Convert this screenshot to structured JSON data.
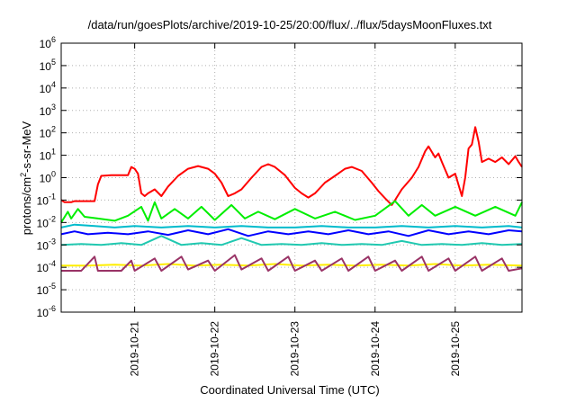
{
  "chart_data": {
    "type": "line",
    "title": "/data/run/goesPlots/archive/2019-10-25/20:00/flux/../flux/5daysMoonFluxes.txt",
    "xlabel": "Coordinated Universal Time (UTC)",
    "ylabel": {
      "base": "protons/cm",
      "sup": "2",
      "rest": "-s-sr-MeV"
    },
    "y_scale": "log",
    "ylim": [
      1e-06,
      1000000.0
    ],
    "xlim": [
      "2019-10-20 02:00",
      "2019-10-25 20:00"
    ],
    "grid": "dotted",
    "y_ticks": [
      {
        "base": "10",
        "exp": "-6"
      },
      {
        "base": "10",
        "exp": "-5"
      },
      {
        "base": "10",
        "exp": "-4"
      },
      {
        "base": "10",
        "exp": "-3"
      },
      {
        "base": "10",
        "exp": "-2"
      },
      {
        "base": "10",
        "exp": "-1"
      },
      {
        "base": "10",
        "exp": "0"
      },
      {
        "base": "10",
        "exp": "1"
      },
      {
        "base": "10",
        "exp": "2"
      },
      {
        "base": "10",
        "exp": "3"
      },
      {
        "base": "10",
        "exp": "4"
      },
      {
        "base": "10",
        "exp": "5"
      },
      {
        "base": "10",
        "exp": "6"
      }
    ],
    "x_ticks": [
      "2019-10-21",
      "2019-10-22",
      "2019-10-23",
      "2019-10-24",
      "2019-10-25"
    ],
    "series": [
      {
        "color": "#ff0000",
        "points": [
          [
            "2019-10-20 02:00",
            0.1
          ],
          [
            "2019-10-20 03:00",
            0.08
          ],
          [
            "2019-10-20 05:00",
            0.08
          ],
          [
            "2019-10-20 06:00",
            0.09
          ],
          [
            "2019-10-20 12:00",
            0.09
          ],
          [
            "2019-10-20 13:00",
            0.5
          ],
          [
            "2019-10-20 14:00",
            1.2
          ],
          [
            "2019-10-20 17:00",
            1.3
          ],
          [
            "2019-10-20 22:00",
            1.3
          ],
          [
            "2019-10-20 23:00",
            3
          ],
          [
            "2019-10-21 00:00",
            2.5
          ],
          [
            "2019-10-21 01:00",
            1.5
          ],
          [
            "2019-10-21 02:00",
            0.2
          ],
          [
            "2019-10-21 03:00",
            0.15
          ],
          [
            "2019-10-21 04:00",
            0.2
          ],
          [
            "2019-10-21 06:00",
            0.3
          ],
          [
            "2019-10-21 08:00",
            0.15
          ],
          [
            "2019-10-21 10:00",
            0.4
          ],
          [
            "2019-10-21 13:00",
            1.2
          ],
          [
            "2019-10-21 16:00",
            2.5
          ],
          [
            "2019-10-21 19:00",
            3.3
          ],
          [
            "2019-10-21 22:00",
            2.5
          ],
          [
            "2019-10-22 00:00",
            1.5
          ],
          [
            "2019-10-22 02:00",
            0.6
          ],
          [
            "2019-10-22 04:00",
            0.15
          ],
          [
            "2019-10-22 06:00",
            0.2
          ],
          [
            "2019-10-22 08:00",
            0.3
          ],
          [
            "2019-10-22 11:00",
            1
          ],
          [
            "2019-10-22 14:00",
            3
          ],
          [
            "2019-10-22 16:00",
            4
          ],
          [
            "2019-10-22 18:00",
            3
          ],
          [
            "2019-10-22 21:00",
            1.3
          ],
          [
            "2019-10-23 00:00",
            0.35
          ],
          [
            "2019-10-23 02:00",
            0.2
          ],
          [
            "2019-10-23 04:00",
            0.13
          ],
          [
            "2019-10-23 06:00",
            0.2
          ],
          [
            "2019-10-23 09:00",
            0.6
          ],
          [
            "2019-10-23 12:00",
            1.2
          ],
          [
            "2019-10-23 15:00",
            2.5
          ],
          [
            "2019-10-23 17:00",
            3
          ],
          [
            "2019-10-23 20:00",
            2
          ],
          [
            "2019-10-23 23:00",
            0.6
          ],
          [
            "2019-10-24 01:00",
            0.25
          ],
          [
            "2019-10-24 03:00",
            0.12
          ],
          [
            "2019-10-24 05:00",
            0.06
          ],
          [
            "2019-10-24 06:00",
            0.1
          ],
          [
            "2019-10-24 08:00",
            0.3
          ],
          [
            "2019-10-24 11:00",
            1
          ],
          [
            "2019-10-24 13:00",
            3
          ],
          [
            "2019-10-24 15:00",
            15
          ],
          [
            "2019-10-24 16:00",
            25
          ],
          [
            "2019-10-24 18:00",
            8
          ],
          [
            "2019-10-24 19:00",
            12
          ],
          [
            "2019-10-24 20:00",
            5
          ],
          [
            "2019-10-24 22:00",
            1
          ],
          [
            "2019-10-25 00:00",
            1.5
          ],
          [
            "2019-10-25 02:00",
            0.15
          ],
          [
            "2019-10-25 03:00",
            1
          ],
          [
            "2019-10-25 04:00",
            20
          ],
          [
            "2019-10-25 05:00",
            30
          ],
          [
            "2019-10-25 06:00",
            180
          ],
          [
            "2019-10-25 07:00",
            40
          ],
          [
            "2019-10-25 08:00",
            5
          ],
          [
            "2019-10-25 10:00",
            7
          ],
          [
            "2019-10-25 12:00",
            5
          ],
          [
            "2019-10-25 14:00",
            8
          ],
          [
            "2019-10-25 16:00",
            4
          ],
          [
            "2019-10-25 18:00",
            9
          ],
          [
            "2019-10-25 19:00",
            5
          ],
          [
            "2019-10-25 20:00",
            3
          ]
        ]
      },
      {
        "color": "#00ee00",
        "points": [
          [
            "2019-10-20 02:00",
            0.01
          ],
          [
            "2019-10-20 04:00",
            0.03
          ],
          [
            "2019-10-20 05:00",
            0.015
          ],
          [
            "2019-10-20 07:00",
            0.04
          ],
          [
            "2019-10-20 09:00",
            0.018
          ],
          [
            "2019-10-20 13:00",
            0.015
          ],
          [
            "2019-10-20 18:00",
            0.012
          ],
          [
            "2019-10-20 22:00",
            0.02
          ],
          [
            "2019-10-21 02:00",
            0.05
          ],
          [
            "2019-10-21 04:00",
            0.012
          ],
          [
            "2019-10-21 06:00",
            0.08
          ],
          [
            "2019-10-21 08:00",
            0.015
          ],
          [
            "2019-10-21 12:00",
            0.04
          ],
          [
            "2019-10-21 16:00",
            0.015
          ],
          [
            "2019-10-21 20:00",
            0.05
          ],
          [
            "2019-10-22 00:00",
            0.013
          ],
          [
            "2019-10-22 05:00",
            0.06
          ],
          [
            "2019-10-22 09:00",
            0.015
          ],
          [
            "2019-10-22 13:00",
            0.03
          ],
          [
            "2019-10-22 18:00",
            0.014
          ],
          [
            "2019-10-23 00:00",
            0.04
          ],
          [
            "2019-10-23 06:00",
            0.015
          ],
          [
            "2019-10-23 12:00",
            0.03
          ],
          [
            "2019-10-23 18:00",
            0.013
          ],
          [
            "2019-10-24 00:00",
            0.02
          ],
          [
            "2019-10-24 06:00",
            0.09
          ],
          [
            "2019-10-24 10:00",
            0.02
          ],
          [
            "2019-10-24 14:00",
            0.06
          ],
          [
            "2019-10-24 18:00",
            0.02
          ],
          [
            "2019-10-25 00:00",
            0.05
          ],
          [
            "2019-10-25 06:00",
            0.02
          ],
          [
            "2019-10-25 12:00",
            0.05
          ],
          [
            "2019-10-25 18:00",
            0.02
          ],
          [
            "2019-10-25 20:00",
            0.08
          ]
        ]
      },
      {
        "color": "#00bbcc",
        "points": [
          [
            "2019-10-20 02:00",
            0.006
          ],
          [
            "2019-10-20 06:00",
            0.008
          ],
          [
            "2019-10-20 12:00",
            0.007
          ],
          [
            "2019-10-20 18:00",
            0.006
          ],
          [
            "2019-10-21 00:00",
            0.007
          ],
          [
            "2019-10-21 08:00",
            0.006
          ],
          [
            "2019-10-21 16:00",
            0.007
          ],
          [
            "2019-10-22 00:00",
            0.006
          ],
          [
            "2019-10-22 08:00",
            0.007
          ],
          [
            "2019-10-22 16:00",
            0.006
          ],
          [
            "2019-10-23 00:00",
            0.006
          ],
          [
            "2019-10-23 08:00",
            0.007
          ],
          [
            "2019-10-23 16:00",
            0.006
          ],
          [
            "2019-10-24 00:00",
            0.006
          ],
          [
            "2019-10-24 08:00",
            0.007
          ],
          [
            "2019-10-24 16:00",
            0.006
          ],
          [
            "2019-10-25 00:00",
            0.007
          ],
          [
            "2019-10-25 08:00",
            0.006
          ],
          [
            "2019-10-25 16:00",
            0.007
          ],
          [
            "2019-10-25 20:00",
            0.006
          ]
        ]
      },
      {
        "color": "#0000ff",
        "points": [
          [
            "2019-10-20 02:00",
            0.003
          ],
          [
            "2019-10-20 06:00",
            0.004
          ],
          [
            "2019-10-20 10:00",
            0.003
          ],
          [
            "2019-10-20 16:00",
            0.0035
          ],
          [
            "2019-10-20 22:00",
            0.003
          ],
          [
            "2019-10-21 04:00",
            0.004
          ],
          [
            "2019-10-21 10:00",
            0.0028
          ],
          [
            "2019-10-21 16:00",
            0.0045
          ],
          [
            "2019-10-21 22:00",
            0.003
          ],
          [
            "2019-10-22 04:00",
            0.005
          ],
          [
            "2019-10-22 10:00",
            0.0025
          ],
          [
            "2019-10-22 16:00",
            0.004
          ],
          [
            "2019-10-22 22:00",
            0.003
          ],
          [
            "2019-10-23 04:00",
            0.004
          ],
          [
            "2019-10-23 10:00",
            0.003
          ],
          [
            "2019-10-23 16:00",
            0.0045
          ],
          [
            "2019-10-23 22:00",
            0.003
          ],
          [
            "2019-10-24 04:00",
            0.004
          ],
          [
            "2019-10-24 10:00",
            0.0025
          ],
          [
            "2019-10-24 16:00",
            0.0045
          ],
          [
            "2019-10-24 22:00",
            0.003
          ],
          [
            "2019-10-25 04:00",
            0.004
          ],
          [
            "2019-10-25 10:00",
            0.003
          ],
          [
            "2019-10-25 16:00",
            0.0045
          ],
          [
            "2019-10-25 20:00",
            0.004
          ]
        ]
      },
      {
        "color": "#20c8b0",
        "points": [
          [
            "2019-10-20 02:00",
            0.001
          ],
          [
            "2019-10-20 08:00",
            0.0011
          ],
          [
            "2019-10-20 14:00",
            0.001
          ],
          [
            "2019-10-20 20:00",
            0.0012
          ],
          [
            "2019-10-21 02:00",
            0.001
          ],
          [
            "2019-10-21 08:00",
            0.0025
          ],
          [
            "2019-10-21 14:00",
            0.001
          ],
          [
            "2019-10-21 20:00",
            0.0012
          ],
          [
            "2019-10-22 02:00",
            0.001
          ],
          [
            "2019-10-22 08:00",
            0.002
          ],
          [
            "2019-10-22 14:00",
            0.001
          ],
          [
            "2019-10-22 20:00",
            0.0011
          ],
          [
            "2019-10-23 02:00",
            0.001
          ],
          [
            "2019-10-23 08:00",
            0.0012
          ],
          [
            "2019-10-23 14:00",
            0.001
          ],
          [
            "2019-10-23 20:00",
            0.0011
          ],
          [
            "2019-10-24 02:00",
            0.001
          ],
          [
            "2019-10-24 08:00",
            0.0015
          ],
          [
            "2019-10-24 14:00",
            0.001
          ],
          [
            "2019-10-24 20:00",
            0.0011
          ],
          [
            "2019-10-25 02:00",
            0.001
          ],
          [
            "2019-10-25 08:00",
            0.0012
          ],
          [
            "2019-10-25 14:00",
            0.001
          ],
          [
            "2019-10-25 20:00",
            0.0011
          ]
        ]
      },
      {
        "color": "#ffee00",
        "points": [
          [
            "2019-10-20 02:00",
            0.00012
          ],
          [
            "2019-10-20 10:00",
            0.00012
          ],
          [
            "2019-10-20 18:00",
            0.00013
          ],
          [
            "2019-10-21 02:00",
            0.00012
          ],
          [
            "2019-10-21 10:00",
            0.00014
          ],
          [
            "2019-10-21 18:00",
            0.00012
          ],
          [
            "2019-10-22 02:00",
            0.00013
          ],
          [
            "2019-10-22 10:00",
            0.00012
          ],
          [
            "2019-10-22 18:00",
            0.00014
          ],
          [
            "2019-10-23 02:00",
            0.00012
          ],
          [
            "2019-10-23 10:00",
            0.00013
          ],
          [
            "2019-10-23 18:00",
            0.00012
          ],
          [
            "2019-10-24 02:00",
            0.00013
          ],
          [
            "2019-10-24 10:00",
            0.00012
          ],
          [
            "2019-10-24 18:00",
            0.00014
          ],
          [
            "2019-10-25 02:00",
            0.00012
          ],
          [
            "2019-10-25 10:00",
            0.00013
          ],
          [
            "2019-10-25 20:00",
            0.00012
          ]
        ]
      },
      {
        "color": "#993366",
        "points": [
          [
            "2019-10-20 02:00",
            7e-05
          ],
          [
            "2019-10-20 08:00",
            7e-05
          ],
          [
            "2019-10-20 12:00",
            0.0003
          ],
          [
            "2019-10-20 13:00",
            7e-05
          ],
          [
            "2019-10-20 20:00",
            7e-05
          ],
          [
            "2019-10-20 23:00",
            0.0002
          ],
          [
            "2019-10-21 00:00",
            7e-05
          ],
          [
            "2019-10-21 06:00",
            0.00025
          ],
          [
            "2019-10-21 08:00",
            7e-05
          ],
          [
            "2019-10-21 14:00",
            0.0003
          ],
          [
            "2019-10-21 16:00",
            8e-05
          ],
          [
            "2019-10-21 22:00",
            0.0002
          ],
          [
            "2019-10-22 00:00",
            7e-05
          ],
          [
            "2019-10-22 06:00",
            0.00035
          ],
          [
            "2019-10-22 08:00",
            8e-05
          ],
          [
            "2019-10-22 14:00",
            0.00025
          ],
          [
            "2019-10-22 16:00",
            7e-05
          ],
          [
            "2019-10-22 22:00",
            0.0003
          ],
          [
            "2019-10-23 00:00",
            7e-05
          ],
          [
            "2019-10-23 06:00",
            0.0002
          ],
          [
            "2019-10-23 08:00",
            7e-05
          ],
          [
            "2019-10-23 14:00",
            0.00025
          ],
          [
            "2019-10-23 16:00",
            7e-05
          ],
          [
            "2019-10-23 22:00",
            0.0003
          ],
          [
            "2019-10-24 00:00",
            7e-05
          ],
          [
            "2019-10-24 06:00",
            0.0002
          ],
          [
            "2019-10-24 08:00",
            7e-05
          ],
          [
            "2019-10-24 14:00",
            0.0003
          ],
          [
            "2019-10-24 16:00",
            7e-05
          ],
          [
            "2019-10-24 22:00",
            0.00025
          ],
          [
            "2019-10-25 00:00",
            7e-05
          ],
          [
            "2019-10-25 06:00",
            0.0003
          ],
          [
            "2019-10-25 08:00",
            7e-05
          ],
          [
            "2019-10-25 14:00",
            0.00025
          ],
          [
            "2019-10-25 16:00",
            7e-05
          ],
          [
            "2019-10-25 20:00",
            9e-05
          ]
        ]
      }
    ]
  }
}
